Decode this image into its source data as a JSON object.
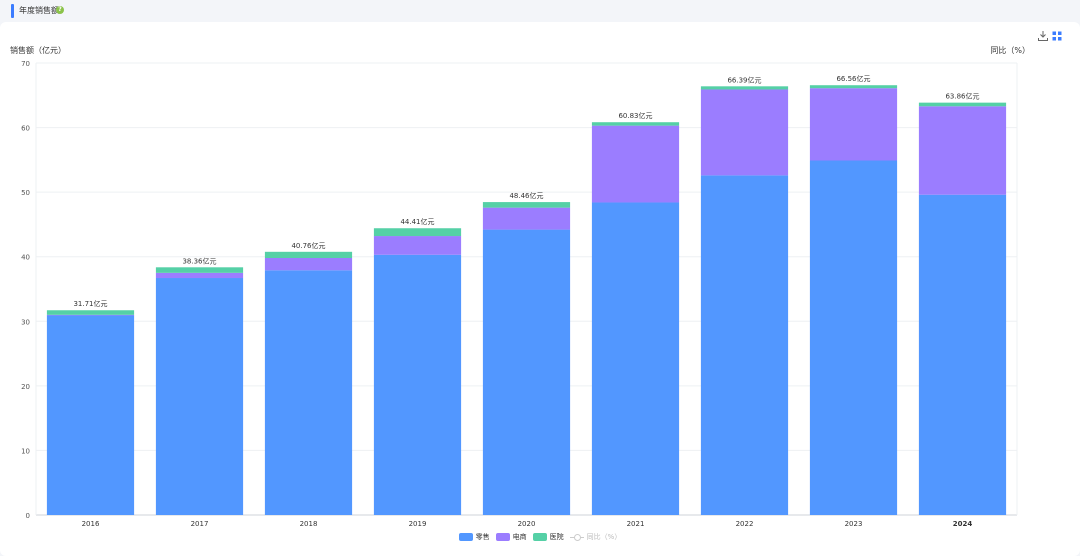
{
  "header": {
    "title": "年度销售额",
    "help_icon": "question-circle-icon"
  },
  "toolbar": {
    "download_icon": "download-icon",
    "grid_icon": "grid-icon"
  },
  "chart_data": {
    "type": "bar",
    "stacked": true,
    "categories": [
      "2016",
      "2017",
      "2018",
      "2019",
      "2020",
      "2021",
      "2022",
      "2023",
      "2024"
    ],
    "series": [
      {
        "name": "零售",
        "color": "#5297ff",
        "values": [
          30.9,
          36.7,
          37.9,
          40.3,
          44.2,
          48.4,
          52.6,
          54.9,
          49.6
        ]
      },
      {
        "name": "电商",
        "color": "#9b7dff",
        "values": [
          0.1,
          0.8,
          1.9,
          2.9,
          3.4,
          11.9,
          13.3,
          11.2,
          13.7
        ]
      },
      {
        "name": "医院",
        "color": "#55d0a6",
        "values": [
          0.71,
          0.86,
          0.96,
          1.21,
          0.86,
          0.53,
          0.49,
          0.46,
          0.56
        ]
      }
    ],
    "line_series": {
      "name": "同比（%）",
      "color": "#cccccc",
      "visible": false
    },
    "total_labels": [
      "31.71亿元",
      "38.36亿元",
      "40.76亿元",
      "44.41亿元",
      "48.46亿元",
      "60.83亿元",
      "66.39亿元",
      "66.56亿元",
      "63.86亿元"
    ],
    "ylabel_left": "销售额（亿元）",
    "ylabel_right": "同比（%）",
    "ylim": [
      0,
      70
    ],
    "yticks": [
      0,
      10,
      20,
      30,
      40,
      50,
      60,
      70
    ],
    "grid": true,
    "legend_position": "bottom-center"
  }
}
